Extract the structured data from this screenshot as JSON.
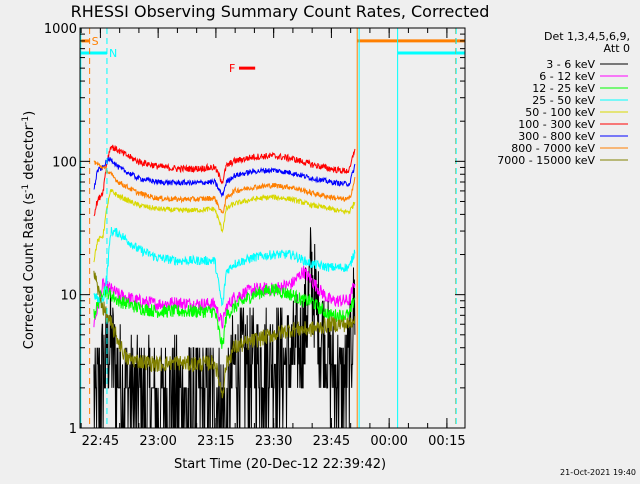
{
  "page_title": "RHESSI Observing Summary Count Rates, Corrected",
  "footer_stamp": "21-Oct-2021 19:40",
  "colors": {
    "background": "#efefef",
    "frame": "#000000",
    "attenuator_flag": "#ff7f00",
    "night_flag": "#00ffff",
    "flare_flag": "#ff0000"
  },
  "chart_data": {
    "type": "line",
    "title": "RHESSI Observing Summary Count Rates, Corrected",
    "xlabel": "Start Time (20-Dec-12 22:39:42)",
    "ylabel_main": "Corrected Count Rate (s",
    "ylabel_sup1": "-1",
    "ylabel_mid": " detector",
    "ylabel_sup2": "-1",
    "ylabel_end": ")",
    "x_unit": "minutes since 22:39:42",
    "xlim": [
      0,
      100
    ],
    "ylim": [
      1,
      1000
    ],
    "yscale": "log",
    "grid": false,
    "legend_position": "right",
    "x_ticks": [
      {
        "t": 5.3,
        "label": "22:45"
      },
      {
        "t": 20.3,
        "label": "23:00"
      },
      {
        "t": 35.3,
        "label": "23:15"
      },
      {
        "t": 50.3,
        "label": "23:30"
      },
      {
        "t": 65.3,
        "label": "23:45"
      },
      {
        "t": 80.3,
        "label": "00:00"
      },
      {
        "t": 95.3,
        "label": "00:15"
      }
    ],
    "y_ticks": [
      {
        "v": 1,
        "label": "1"
      },
      {
        "v": 10,
        "label": "10"
      },
      {
        "v": 100,
        "label": "100"
      },
      {
        "v": 1000,
        "label": "1000"
      }
    ],
    "legend_header": [
      "Det 1,3,4,5,6,9,",
      "Att 0"
    ],
    "series": [
      {
        "name": "3 - 6 keV",
        "color": "#000000",
        "noise": 0.45,
        "points": [
          [
            3.6,
            2
          ],
          [
            4,
            1.5
          ],
          [
            6,
            3
          ],
          [
            8,
            4
          ],
          [
            10,
            2.5
          ],
          [
            12,
            2
          ],
          [
            15,
            1.8
          ],
          [
            20,
            1.6
          ],
          [
            25,
            1.7
          ],
          [
            30,
            1.6
          ],
          [
            35,
            1.8
          ],
          [
            38,
            1.2
          ],
          [
            40,
            3
          ],
          [
            45,
            3
          ],
          [
            50,
            3.3
          ],
          [
            55,
            3.2
          ],
          [
            58,
            4.5
          ],
          [
            60,
            14
          ],
          [
            62,
            6
          ],
          [
            65,
            3
          ],
          [
            68,
            2
          ],
          [
            70,
            3
          ],
          [
            71.5,
            10
          ]
        ]
      },
      {
        "name": "6 - 12 keV",
        "color": "#ff00ff",
        "noise": 0.05,
        "points": [
          [
            3.6,
            6
          ],
          [
            6,
            12
          ],
          [
            8,
            11
          ],
          [
            10,
            10
          ],
          [
            15,
            9
          ],
          [
            20,
            8.5
          ],
          [
            25,
            8.7
          ],
          [
            30,
            8.5
          ],
          [
            35,
            8.5
          ],
          [
            37,
            6
          ],
          [
            38,
            8
          ],
          [
            40,
            9.5
          ],
          [
            45,
            11
          ],
          [
            50,
            11
          ],
          [
            55,
            12
          ],
          [
            58,
            15
          ],
          [
            60,
            13
          ],
          [
            62,
            11
          ],
          [
            65,
            9
          ],
          [
            68,
            9
          ],
          [
            70,
            9
          ],
          [
            71.5,
            13
          ]
        ]
      },
      {
        "name": "12 - 25 keV",
        "color": "#00ff00",
        "noise": 0.05,
        "points": [
          [
            3.6,
            7
          ],
          [
            6,
            11
          ],
          [
            8,
            10
          ],
          [
            10,
            9
          ],
          [
            15,
            8
          ],
          [
            20,
            7.5
          ],
          [
            25,
            7.5
          ],
          [
            30,
            7.5
          ],
          [
            35,
            7.5
          ],
          [
            37,
            4
          ],
          [
            38,
            7
          ],
          [
            40,
            8
          ],
          [
            45,
            10
          ],
          [
            50,
            11
          ],
          [
            55,
            10
          ],
          [
            58,
            9
          ],
          [
            60,
            9
          ],
          [
            62,
            8
          ],
          [
            65,
            7
          ],
          [
            68,
            7
          ],
          [
            70,
            7
          ],
          [
            71.5,
            10
          ]
        ]
      },
      {
        "name": "25 - 50 keV",
        "color": "#00ffff",
        "noise": 0.035,
        "points": [
          [
            3.6,
            10
          ],
          [
            5,
            9
          ],
          [
            6,
            9
          ],
          [
            7,
            14
          ],
          [
            8,
            30
          ],
          [
            10,
            29
          ],
          [
            15,
            22
          ],
          [
            20,
            19
          ],
          [
            25,
            18
          ],
          [
            30,
            18
          ],
          [
            35,
            18
          ],
          [
            37,
            8
          ],
          [
            38,
            15
          ],
          [
            40,
            17
          ],
          [
            45,
            19
          ],
          [
            50,
            20
          ],
          [
            55,
            20
          ],
          [
            60,
            17
          ],
          [
            65,
            16
          ],
          [
            68,
            16
          ],
          [
            70,
            16
          ],
          [
            71.5,
            22
          ]
        ]
      },
      {
        "name": "50 - 100 keV",
        "color": "#d8d800",
        "noise": 0.02,
        "points": [
          [
            3.6,
            18
          ],
          [
            4.5,
            25
          ],
          [
            6,
            28
          ],
          [
            7,
            45
          ],
          [
            8,
            60
          ],
          [
            10,
            55
          ],
          [
            15,
            47
          ],
          [
            20,
            44
          ],
          [
            25,
            43
          ],
          [
            30,
            43
          ],
          [
            35,
            44
          ],
          [
            37,
            30
          ],
          [
            38,
            44
          ],
          [
            40,
            48
          ],
          [
            45,
            52
          ],
          [
            50,
            54
          ],
          [
            55,
            52
          ],
          [
            60,
            47
          ],
          [
            65,
            44
          ],
          [
            68,
            42
          ],
          [
            70,
            42
          ],
          [
            71.5,
            50
          ]
        ]
      },
      {
        "name": "100 - 300 keV",
        "color": "#ff0000",
        "noise": 0.025,
        "points": [
          [
            3.6,
            40
          ],
          [
            4.5,
            50
          ],
          [
            6,
            60
          ],
          [
            7,
            100
          ],
          [
            8,
            130
          ],
          [
            10,
            120
          ],
          [
            15,
            100
          ],
          [
            20,
            92
          ],
          [
            25,
            88
          ],
          [
            30,
            88
          ],
          [
            35,
            90
          ],
          [
            37,
            70
          ],
          [
            38,
            92
          ],
          [
            40,
            100
          ],
          [
            45,
            108
          ],
          [
            50,
            110
          ],
          [
            55,
            105
          ],
          [
            60,
            95
          ],
          [
            65,
            88
          ],
          [
            68,
            85
          ],
          [
            70,
            85
          ],
          [
            71.5,
            130
          ]
        ]
      },
      {
        "name": "300 - 800 keV",
        "color": "#0000ff",
        "noise": 0.02,
        "points": [
          [
            3.6,
            60
          ],
          [
            4.5,
            85
          ],
          [
            6,
            90
          ],
          [
            7,
            100
          ],
          [
            8,
            105
          ],
          [
            10,
            90
          ],
          [
            15,
            75
          ],
          [
            20,
            70
          ],
          [
            25,
            69
          ],
          [
            30,
            69
          ],
          [
            35,
            70
          ],
          [
            37,
            55
          ],
          [
            38,
            70
          ],
          [
            40,
            78
          ],
          [
            45,
            84
          ],
          [
            50,
            86
          ],
          [
            55,
            82
          ],
          [
            60,
            75
          ],
          [
            65,
            70
          ],
          [
            68,
            68
          ],
          [
            70,
            68
          ],
          [
            71.5,
            95
          ]
        ]
      },
      {
        "name": "800 - 7000 keV",
        "color": "#ff7f00",
        "noise": 0.02,
        "points": [
          [
            3.6,
            100
          ],
          [
            4.5,
            95
          ],
          [
            6,
            90
          ],
          [
            7,
            85
          ],
          [
            8,
            80
          ],
          [
            10,
            70
          ],
          [
            15,
            58
          ],
          [
            20,
            53
          ],
          [
            25,
            52
          ],
          [
            30,
            52
          ],
          [
            35,
            53
          ],
          [
            37,
            40
          ],
          [
            38,
            53
          ],
          [
            40,
            60
          ],
          [
            45,
            64
          ],
          [
            50,
            66
          ],
          [
            55,
            64
          ],
          [
            60,
            58
          ],
          [
            65,
            54
          ],
          [
            68,
            52
          ],
          [
            70,
            52
          ],
          [
            71.5,
            75
          ]
        ]
      },
      {
        "name": "7000 - 15000 keV",
        "color": "#808000",
        "noise": 0.06,
        "points": [
          [
            3.6,
            15
          ],
          [
            5,
            10
          ],
          [
            6,
            8
          ],
          [
            8,
            6
          ],
          [
            10,
            4.5
          ],
          [
            12,
            3.3
          ],
          [
            15,
            3.2
          ],
          [
            20,
            3
          ],
          [
            25,
            3.1
          ],
          [
            30,
            3
          ],
          [
            35,
            3.1
          ],
          [
            37,
            1.8
          ],
          [
            38,
            3
          ],
          [
            40,
            4
          ],
          [
            45,
            4.5
          ],
          [
            50,
            5
          ],
          [
            55,
            5.5
          ],
          [
            60,
            5.5
          ],
          [
            65,
            6
          ],
          [
            68,
            6
          ],
          [
            70,
            6
          ],
          [
            71.5,
            7
          ]
        ]
      }
    ],
    "flags": [
      {
        "label": "S",
        "color": "#ff7f00",
        "y": 800,
        "segments": [
          [
            0,
            2.5
          ]
        ]
      },
      {
        "label": "",
        "color": "#ff7f00",
        "y": 800,
        "segments": [
          [
            72,
            100
          ]
        ]
      },
      {
        "label": "N",
        "color": "#00ffff",
        "y": 650,
        "segments": [
          [
            0,
            7
          ]
        ]
      },
      {
        "label": "",
        "color": "#00ffff",
        "y": 650,
        "segments": [
          [
            82.5,
            100
          ]
        ]
      },
      {
        "label": "F",
        "color": "#ff0000",
        "y": 500,
        "segments": [
          [
            41.3,
            45.5
          ]
        ]
      }
    ],
    "vlines": [
      {
        "t": 2.5,
        "color": "#ff7f00",
        "dashed": true
      },
      {
        "t": 7,
        "color": "#00ffff",
        "dashed": true
      },
      {
        "t": 72,
        "color": "#ff7f00",
        "dashed": false
      },
      {
        "t": 72.5,
        "color": "#00ffff",
        "dashed": false
      },
      {
        "t": 82.5,
        "color": "#00ffff",
        "dashed": false
      },
      {
        "t": 97.6,
        "color": "#ff7f00",
        "dashed": true
      },
      {
        "t": 97.7,
        "color": "#00ffff",
        "dashed": true
      },
      {
        "t": 0.2,
        "color": "#00ffff",
        "dashed": false
      }
    ]
  }
}
